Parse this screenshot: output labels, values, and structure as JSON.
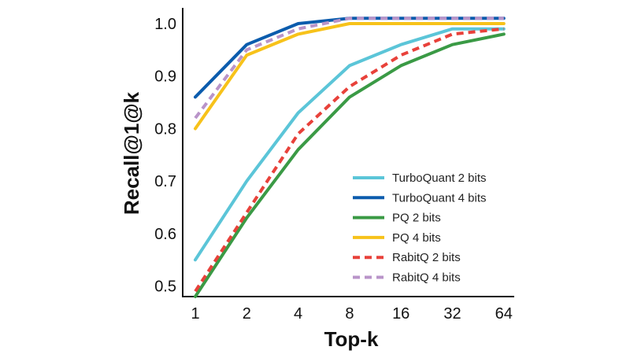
{
  "chart_data": {
    "type": "line",
    "title": "",
    "xlabel": "Top-k",
    "ylabel": "Recall@1@k",
    "categories": [
      "1",
      "2",
      "4",
      "8",
      "16",
      "32",
      "64"
    ],
    "ylim": [
      0.48,
      1.03
    ],
    "yticks": [
      "0.5",
      "0.6",
      "0.7",
      "0.8",
      "0.9",
      "1.0"
    ],
    "legend_position": "lower-right",
    "grid": false,
    "series": [
      {
        "name": "TurboQuant 2 bits",
        "color": "#5bc5d8",
        "dash": "solid",
        "values": [
          0.55,
          0.7,
          0.83,
          0.92,
          0.96,
          0.99,
          0.99
        ]
      },
      {
        "name": "TurboQuant 4 bits",
        "color": "#0b5cad",
        "dash": "solid",
        "values": [
          0.86,
          0.96,
          1.0,
          1.01,
          1.01,
          1.01,
          1.01
        ]
      },
      {
        "name": "PQ 2 bits",
        "color": "#3a9a45",
        "dash": "solid",
        "values": [
          0.48,
          0.63,
          0.76,
          0.86,
          0.92,
          0.96,
          0.98
        ]
      },
      {
        "name": "PQ 4 bits",
        "color": "#f7c21a",
        "dash": "solid",
        "values": [
          0.8,
          0.94,
          0.98,
          1.0,
          1.0,
          1.0,
          1.0
        ]
      },
      {
        "name": "RabitQ 2 bits",
        "color": "#e8413a",
        "dash": "dashed",
        "values": [
          0.49,
          0.64,
          0.79,
          0.88,
          0.94,
          0.98,
          0.99
        ]
      },
      {
        "name": "RabitQ 4 bits",
        "color": "#b994c9",
        "dash": "dashed",
        "values": [
          0.82,
          0.95,
          0.99,
          1.01,
          1.01,
          1.01,
          1.01
        ]
      }
    ]
  }
}
